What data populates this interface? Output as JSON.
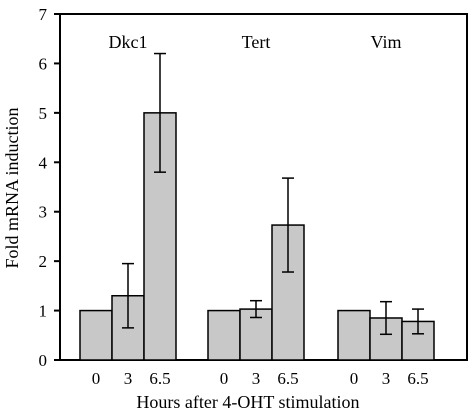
{
  "chart_data": {
    "type": "bar",
    "xlabel": "Hours after 4-OHT stimulation",
    "ylabel": "Fold mRNA induction",
    "ylim": [
      0,
      7
    ],
    "yticks": [
      0,
      1,
      2,
      3,
      4,
      5,
      6,
      7
    ],
    "grid": false,
    "legend": "none",
    "bar_color": "#c8c8c8",
    "groups": [
      {
        "label": "Dkc1",
        "categories": [
          "0",
          "3",
          "6.5"
        ],
        "values": [
          1.0,
          1.3,
          5.0
        ],
        "errors": [
          0,
          0.65,
          1.2
        ]
      },
      {
        "label": "Tert",
        "categories": [
          "0",
          "3",
          "6.5"
        ],
        "values": [
          1.0,
          1.03,
          2.73
        ],
        "errors": [
          0,
          0.17,
          0.95
        ]
      },
      {
        "label": "Vim",
        "categories": [
          "0",
          "3",
          "6.5"
        ],
        "values": [
          1.0,
          0.85,
          0.78
        ],
        "errors": [
          0,
          0.33,
          0.25
        ]
      }
    ]
  }
}
